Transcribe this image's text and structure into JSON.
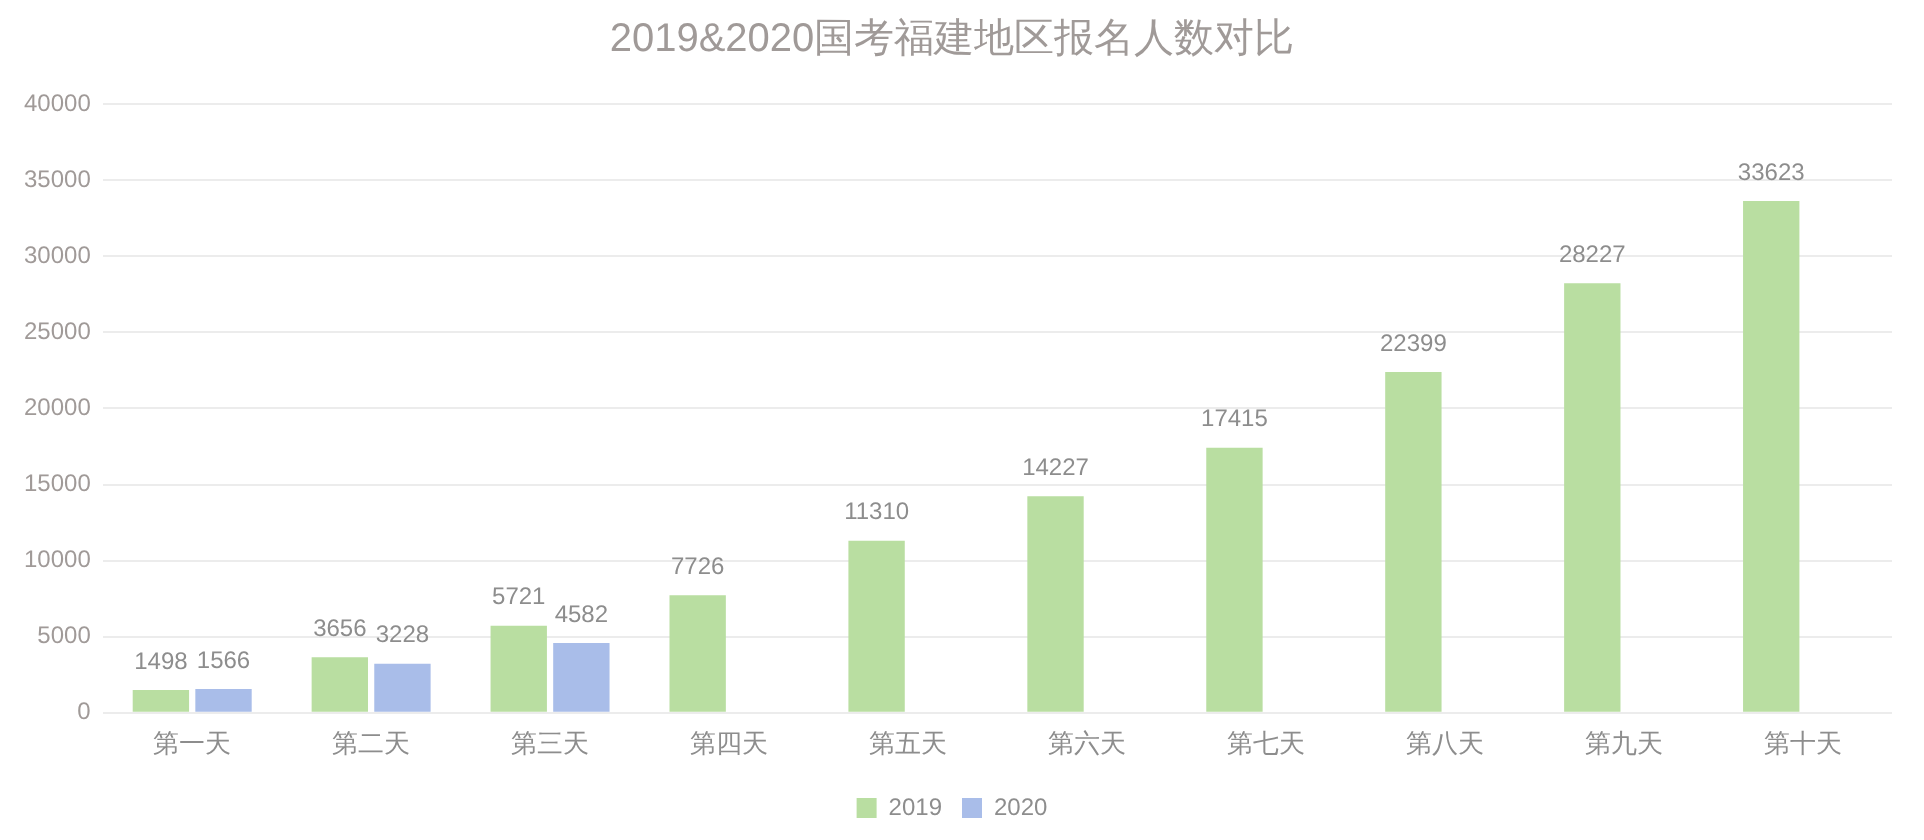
{
  "chart_data": {
    "type": "bar",
    "title": "2019&2020国考福建地区报名人数对比",
    "categories": [
      "第一天",
      "第二天",
      "第三天",
      "第四天",
      "第五天",
      "第六天",
      "第七天",
      "第八天",
      "第九天",
      "第十天"
    ],
    "series": [
      {
        "name": "2019",
        "color": "#b9dea1",
        "values": [
          1498,
          3656,
          5721,
          7726,
          11310,
          14227,
          17415,
          22399,
          28227,
          33623
        ]
      },
      {
        "name": "2020",
        "color": "#a9bde9",
        "values": [
          1566,
          3228,
          4582,
          null,
          null,
          null,
          null,
          null,
          null,
          null
        ]
      }
    ],
    "ylim": [
      0,
      40000
    ],
    "yticks": [
      0,
      5000,
      10000,
      15000,
      20000,
      25000,
      30000,
      35000,
      40000
    ],
    "grid": "y",
    "legend": "bottom",
    "data_labels": true
  }
}
